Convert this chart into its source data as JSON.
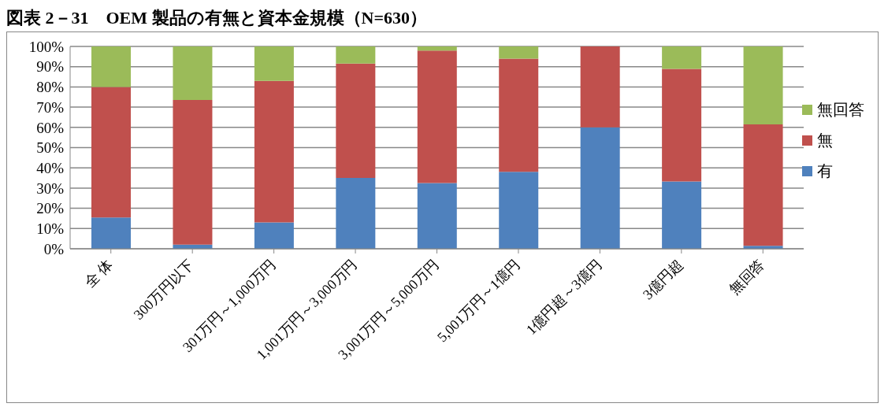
{
  "chart_data": {
    "type": "bar",
    "title": "図表 2－31　OEM 製品の有無と資本金規模（N=630）",
    "categories": [
      "全 体",
      "300万円以下",
      "301万円～1,000万円",
      "1,001万円～3,000万円",
      "3,001万円～5,000万円",
      "5,001万円～1億円",
      "1億円超～3億円",
      "3億円超",
      "無回答"
    ],
    "series": [
      {
        "name": "有",
        "color": "#4f81bd",
        "values": [
          15.5,
          2,
          13,
          35,
          32.5,
          38,
          60,
          33.3,
          1.5
        ]
      },
      {
        "name": "無",
        "color": "#c0504d",
        "values": [
          64.5,
          71.5,
          70,
          56.5,
          65.5,
          56,
          40,
          55.6,
          60
        ]
      },
      {
        "name": "無回答",
        "color": "#9bbb59",
        "values": [
          20,
          26.5,
          17,
          8.5,
          2,
          6,
          0,
          11.1,
          38.5
        ]
      }
    ],
    "stacked": true,
    "ylim": [
      0,
      100
    ],
    "yticks": [
      {
        "value": 0,
        "label": "0%"
      },
      {
        "value": 10,
        "label": "10%"
      },
      {
        "value": 20,
        "label": "20%"
      },
      {
        "value": 30,
        "label": "30%"
      },
      {
        "value": 40,
        "label": "40%"
      },
      {
        "value": 50,
        "label": "50%"
      },
      {
        "value": 60,
        "label": "60%"
      },
      {
        "value": 70,
        "label": "70%"
      },
      {
        "value": 80,
        "label": "80%"
      },
      {
        "value": 90,
        "label": "90%"
      },
      {
        "value": 100,
        "label": "100%"
      }
    ],
    "grid": "y",
    "legend": "right"
  }
}
